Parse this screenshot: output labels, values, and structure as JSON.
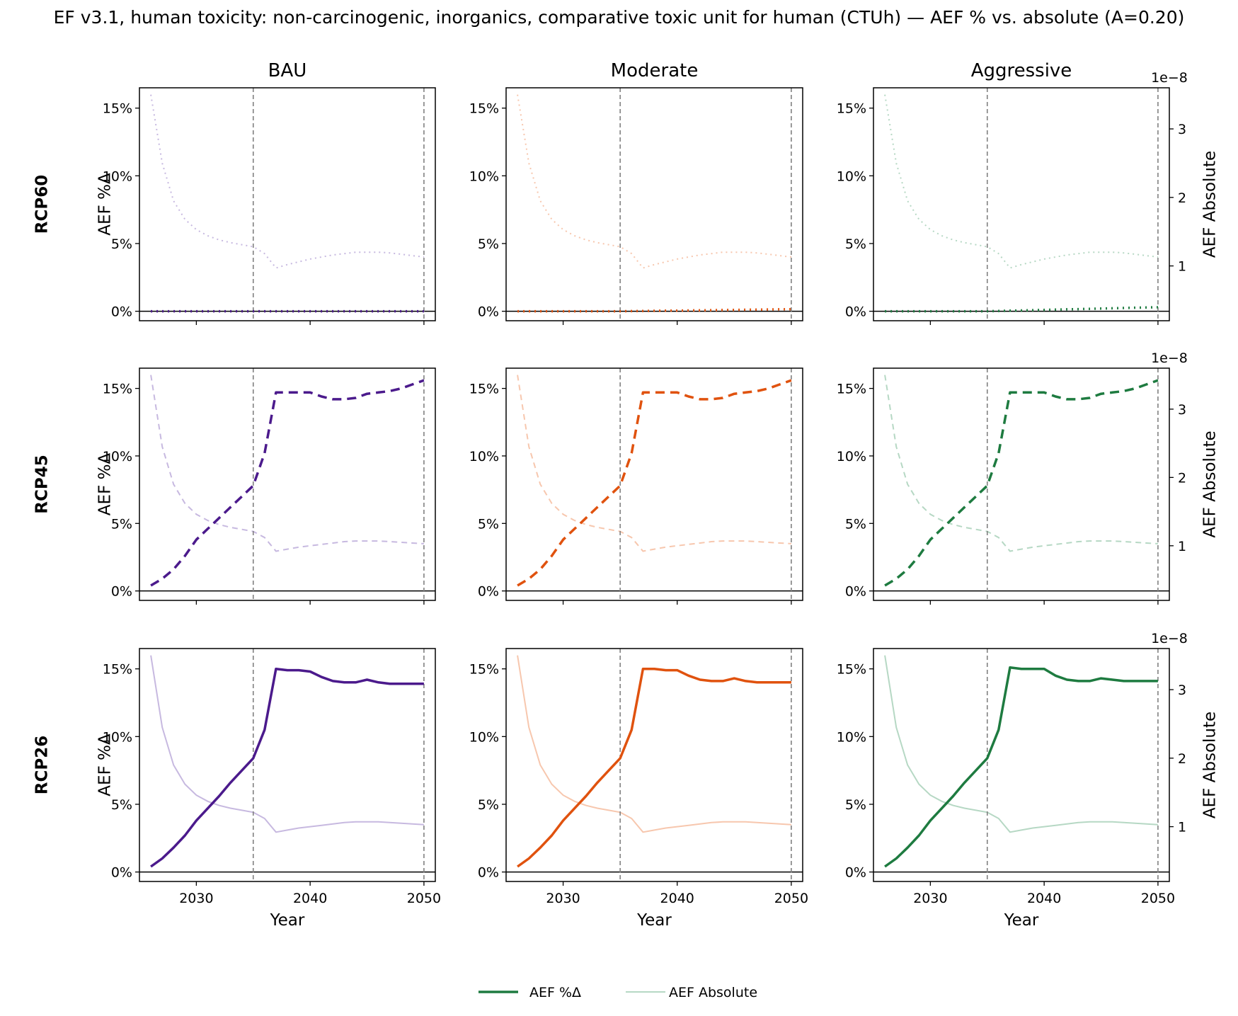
{
  "figure": {
    "title": "EF v3.1, human toxicity: non-carcinogenic, inorganics, comparative toxic unit for human (CTUh)  —  AEF % vs. absolute (A=0.20)",
    "col_titles": [
      "BAU",
      "Moderate",
      "Aggressive"
    ],
    "row_titles": [
      "RCP60",
      "RCP45",
      "RCP26"
    ],
    "ylabel_left": "AEF %Δ",
    "ylabel_right": "AEF Absolute",
    "xlabel": "Year",
    "right_axis_offset_label": "1e−8",
    "legend": [
      {
        "label": "AEF %Δ",
        "style": "strong"
      },
      {
        "label": "AEF Absolute",
        "style": "faint"
      }
    ]
  },
  "colors": {
    "BAU": "#4b1a8c",
    "BAU_light": "#c7b9e0",
    "Moderate": "#e0520e",
    "Moderate_light": "#f7c7ae",
    "Aggressive": "#1e7b40",
    "Aggressive_light": "#b6d8c4",
    "reference_line": "#808080"
  },
  "chart_data": {
    "type": "line",
    "layout": "grid 3x3 (rows = RCP scenario, columns = policy scenario)",
    "x": [
      2026,
      2027,
      2028,
      2029,
      2030,
      2031,
      2032,
      2033,
      2034,
      2035,
      2036,
      2037,
      2038,
      2039,
      2040,
      2041,
      2042,
      2043,
      2044,
      2045,
      2046,
      2047,
      2048,
      2049,
      2050
    ],
    "xlim": [
      2025,
      2051
    ],
    "xticks": [
      2030,
      2040,
      2050
    ],
    "ylim_left": [
      -0.7,
      16.5
    ],
    "yticks_left": [
      0,
      5,
      10,
      15
    ],
    "ytick_format": "{v}%",
    "ylim_right": [
      2e-09,
      3.6e-08
    ],
    "yticks_right": [
      1,
      2,
      3
    ],
    "right_axis_scale": "1e-8",
    "vlines": [
      2035,
      2050
    ],
    "hline": 0,
    "line_styles": {
      "RCP60": "dotted",
      "RCP45": "dashed",
      "RCP26": "solid"
    },
    "absolute": {
      "RCP60": [
        3.5,
        2.5,
        1.95,
        1.68,
        1.53,
        1.44,
        1.38,
        1.34,
        1.31,
        1.28,
        1.18,
        0.97,
        1.02,
        1.06,
        1.1,
        1.13,
        1.16,
        1.18,
        1.2,
        1.2,
        1.2,
        1.19,
        1.17,
        1.15,
        1.13
      ],
      "RCP45": [
        3.5,
        2.45,
        1.9,
        1.62,
        1.46,
        1.37,
        1.31,
        1.27,
        1.24,
        1.21,
        1.12,
        0.92,
        0.95,
        0.98,
        1.0,
        1.02,
        1.04,
        1.06,
        1.07,
        1.07,
        1.07,
        1.06,
        1.05,
        1.04,
        1.03
      ],
      "RCP26": [
        3.5,
        2.45,
        1.9,
        1.62,
        1.46,
        1.37,
        1.31,
        1.27,
        1.24,
        1.21,
        1.12,
        0.92,
        0.95,
        0.98,
        1.0,
        1.02,
        1.04,
        1.06,
        1.07,
        1.07,
        1.07,
        1.06,
        1.05,
        1.04,
        1.03
      ]
    },
    "percent": {
      "RCP60": {
        "BAU": [
          0,
          0,
          0,
          0,
          0,
          0,
          0,
          0,
          0,
          0,
          0,
          0,
          0,
          0,
          0,
          0,
          0,
          0,
          0,
          0,
          0,
          0,
          0,
          0,
          0
        ],
        "Moderate": [
          0,
          0,
          0,
          0,
          0,
          0,
          0,
          0,
          0,
          0,
          0.01,
          0.02,
          0.03,
          0.04,
          0.05,
          0.06,
          0.07,
          0.08,
          0.09,
          0.1,
          0.11,
          0.12,
          0.13,
          0.14,
          0.15
        ],
        "Aggressive": [
          0,
          0,
          0,
          0,
          0,
          0,
          0,
          0,
          0,
          0,
          0.02,
          0.04,
          0.06,
          0.08,
          0.1,
          0.12,
          0.14,
          0.16,
          0.18,
          0.2,
          0.22,
          0.24,
          0.26,
          0.28,
          0.3
        ]
      },
      "RCP45": {
        "BAU": [
          0.4,
          0.9,
          1.6,
          2.6,
          3.8,
          4.6,
          5.4,
          6.2,
          7.0,
          7.8,
          10.2,
          14.7,
          14.7,
          14.7,
          14.7,
          14.4,
          14.2,
          14.2,
          14.3,
          14.6,
          14.7,
          14.8,
          15.0,
          15.3,
          15.6
        ],
        "Moderate": [
          0.4,
          0.9,
          1.6,
          2.6,
          3.8,
          4.6,
          5.4,
          6.2,
          7.0,
          7.8,
          10.2,
          14.7,
          14.7,
          14.7,
          14.7,
          14.4,
          14.2,
          14.2,
          14.3,
          14.6,
          14.7,
          14.8,
          15.0,
          15.3,
          15.6
        ],
        "Aggressive": [
          0.4,
          0.9,
          1.6,
          2.6,
          3.8,
          4.6,
          5.4,
          6.2,
          7.0,
          7.8,
          10.2,
          14.7,
          14.7,
          14.7,
          14.7,
          14.4,
          14.2,
          14.2,
          14.3,
          14.6,
          14.7,
          14.8,
          15.0,
          15.3,
          15.6
        ]
      },
      "RCP26": {
        "BAU": [
          0.4,
          1.0,
          1.8,
          2.7,
          3.8,
          4.7,
          5.6,
          6.6,
          7.5,
          8.4,
          10.5,
          15.0,
          14.9,
          14.9,
          14.8,
          14.4,
          14.1,
          14.0,
          14.0,
          14.2,
          14.0,
          13.9,
          13.9,
          13.9,
          13.9
        ],
        "Moderate": [
          0.4,
          1.0,
          1.8,
          2.7,
          3.8,
          4.7,
          5.6,
          6.6,
          7.5,
          8.4,
          10.5,
          15.0,
          15.0,
          14.9,
          14.9,
          14.5,
          14.2,
          14.1,
          14.1,
          14.3,
          14.1,
          14.0,
          14.0,
          14.0,
          14.0
        ],
        "Aggressive": [
          0.4,
          1.0,
          1.8,
          2.7,
          3.8,
          4.7,
          5.6,
          6.6,
          7.5,
          8.4,
          10.5,
          15.1,
          15.0,
          15.0,
          15.0,
          14.5,
          14.2,
          14.1,
          14.1,
          14.3,
          14.2,
          14.1,
          14.1,
          14.1,
          14.1
        ]
      }
    }
  }
}
